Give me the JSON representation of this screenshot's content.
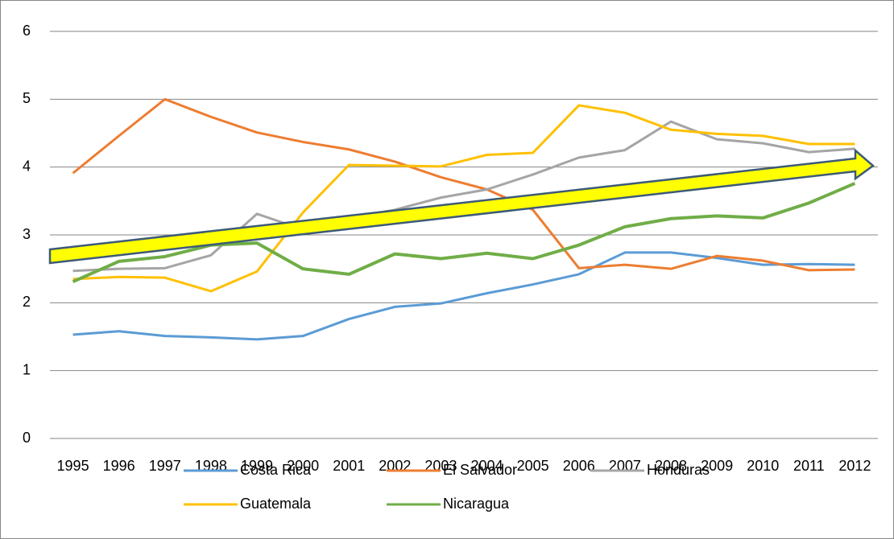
{
  "chart_data": {
    "type": "line",
    "categories": [
      "1995",
      "1996",
      "1997",
      "1998",
      "1999",
      "2000",
      "2001",
      "2002",
      "2003",
      "2004",
      "2005",
      "2006",
      "2007",
      "2008",
      "2009",
      "2010",
      "2011",
      "2012"
    ],
    "series": [
      {
        "name": "Costa Rica",
        "color": "#5b9bd5",
        "values": [
          1.53,
          1.58,
          1.51,
          1.49,
          1.46,
          1.51,
          1.76,
          1.94,
          1.99,
          2.14,
          2.27,
          2.42,
          2.74,
          2.74,
          2.66,
          2.56,
          2.57,
          2.56
        ]
      },
      {
        "name": "El Salvador",
        "color": "#ed7d31",
        "values": [
          3.91,
          4.46,
          5.0,
          4.74,
          4.51,
          4.37,
          4.26,
          4.08,
          3.85,
          3.67,
          3.37,
          2.51,
          2.56,
          2.5,
          2.69,
          2.62,
          2.48,
          2.49
        ]
      },
      {
        "name": "Honduras",
        "color": "#a5a5a5",
        "values": [
          2.47,
          2.5,
          2.51,
          2.7,
          3.31,
          3.08,
          3.25,
          3.37,
          3.55,
          3.67,
          3.89,
          4.14,
          4.25,
          4.67,
          4.41,
          4.35,
          4.22,
          4.27
        ]
      },
      {
        "name": "Guatemala",
        "color": "#ffc000",
        "values": [
          2.35,
          2.38,
          2.37,
          2.17,
          2.46,
          3.33,
          4.03,
          4.02,
          4.01,
          4.18,
          4.21,
          4.91,
          4.8,
          4.55,
          4.49,
          4.46,
          4.34,
          4.34
        ]
      },
      {
        "name": "Nicaragua",
        "color": "#70ad47",
        "values": [
          2.31,
          2.61,
          2.68,
          2.85,
          2.88,
          2.5,
          2.42,
          2.72,
          2.65,
          2.73,
          2.65,
          2.85,
          3.12,
          3.24,
          3.28,
          3.25,
          3.47,
          3.76
        ]
      }
    ],
    "ylim": [
      0,
      6
    ],
    "yticks": [
      0,
      1,
      2,
      3,
      4,
      5,
      6
    ],
    "grid": true,
    "legend": "bottom"
  }
}
